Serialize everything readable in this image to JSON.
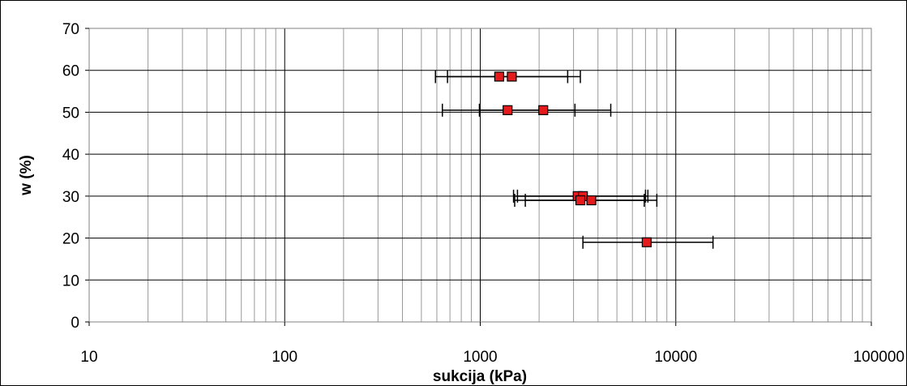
{
  "chart_data": {
    "type": "scatter",
    "title": "",
    "xlabel": "sukcija (kPa)",
    "ylabel": "w (%)",
    "x_scale": "log",
    "xlim": [
      10,
      100000
    ],
    "ylim": [
      0,
      70
    ],
    "x_ticks": [
      "10",
      "100",
      "1000",
      "10000",
      "100000"
    ],
    "y_ticks": [
      "0",
      "10",
      "20",
      "30",
      "40",
      "50",
      "60",
      "70"
    ],
    "grid": true,
    "legend": "none",
    "marker_color": "#e41a1c",
    "points": [
      {
        "x": 1250,
        "y": 58.5,
        "x_err_low": 590,
        "x_err_high": 2800
      },
      {
        "x": 1450,
        "y": 58.5,
        "x_err_low": 680,
        "x_err_high": 3250
      },
      {
        "x": 1380,
        "y": 50.5,
        "x_err_low": 640,
        "x_err_high": 3050
      },
      {
        "x": 2100,
        "y": 50.5,
        "x_err_low": 990,
        "x_err_high": 4650
      },
      {
        "x": 3150,
        "y": 30,
        "x_err_low": 1480,
        "x_err_high": 7000
      },
      {
        "x": 3350,
        "y": 30,
        "x_err_low": 1550,
        "x_err_high": 7200
      },
      {
        "x": 3250,
        "y": 29,
        "x_err_low": 1500,
        "x_err_high": 6900
      },
      {
        "x": 3700,
        "y": 29,
        "x_err_low": 1700,
        "x_err_high": 8000
      },
      {
        "x": 7100,
        "y": 19,
        "x_err_low": 3350,
        "x_err_high": 15500
      }
    ]
  }
}
